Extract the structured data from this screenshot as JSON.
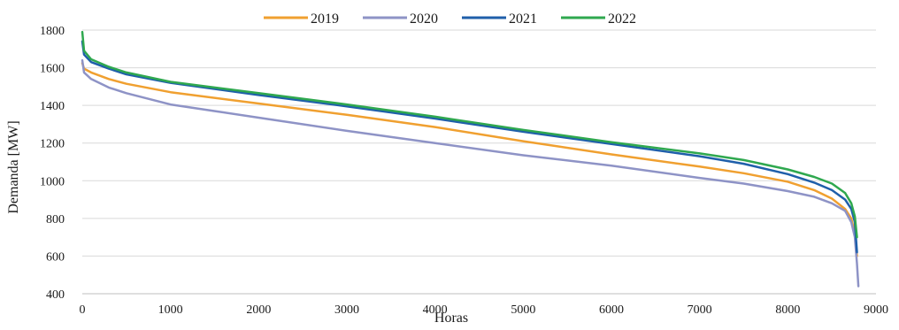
{
  "chart_data": {
    "type": "line",
    "title": "",
    "xlabel": "Horas",
    "ylabel": "Demanda [MW]",
    "xlim": [
      0,
      9000
    ],
    "ylim": [
      400,
      1800
    ],
    "xticks": [
      "0",
      "1000",
      "2000",
      "3000",
      "4000",
      "5000",
      "6000",
      "7000",
      "8000",
      "9000"
    ],
    "yticks": [
      "400",
      "600",
      "800",
      "1000",
      "1200",
      "1400",
      "1600",
      "1800"
    ],
    "grid": true,
    "legend_position": "top",
    "series": [
      {
        "name": "2019",
        "color": "#f0a030",
        "x": [
          0,
          20,
          100,
          300,
          500,
          1000,
          2000,
          3000,
          4000,
          5000,
          6000,
          7000,
          7500,
          8000,
          8300,
          8500,
          8650,
          8720,
          8760,
          8784
        ],
        "y": [
          1625,
          1595,
          1575,
          1540,
          1515,
          1470,
          1410,
          1350,
          1285,
          1210,
          1140,
          1075,
          1040,
          995,
          950,
          905,
          850,
          800,
          720,
          600
        ]
      },
      {
        "name": "2020",
        "color": "#8e93c6",
        "x": [
          0,
          20,
          100,
          300,
          500,
          1000,
          2000,
          3000,
          4000,
          5000,
          6000,
          7000,
          7500,
          8000,
          8300,
          8500,
          8650,
          8720,
          8760,
          8784,
          8800
        ],
        "y": [
          1640,
          1575,
          1540,
          1495,
          1465,
          1405,
          1335,
          1265,
          1200,
          1135,
          1080,
          1015,
          985,
          945,
          915,
          880,
          840,
          780,
          700,
          560,
          440
        ]
      },
      {
        "name": "2021",
        "color": "#1f5faa",
        "x": [
          0,
          20,
          100,
          300,
          500,
          1000,
          2000,
          3000,
          4000,
          5000,
          6000,
          7000,
          7500,
          8000,
          8300,
          8500,
          8650,
          8720,
          8760,
          8784
        ],
        "y": [
          1740,
          1670,
          1630,
          1595,
          1565,
          1520,
          1455,
          1395,
          1330,
          1260,
          1195,
          1130,
          1090,
          1035,
          990,
          950,
          900,
          850,
          780,
          620
        ]
      },
      {
        "name": "2022",
        "color": "#2fa84f",
        "x": [
          0,
          20,
          100,
          300,
          500,
          1000,
          2000,
          3000,
          4000,
          5000,
          6000,
          7000,
          7500,
          8000,
          8300,
          8500,
          8650,
          8720,
          8760,
          8784
        ],
        "y": [
          1790,
          1690,
          1645,
          1605,
          1575,
          1525,
          1465,
          1405,
          1340,
          1270,
          1205,
          1145,
          1110,
          1060,
          1020,
          985,
          935,
          880,
          810,
          700
        ]
      }
    ]
  }
}
